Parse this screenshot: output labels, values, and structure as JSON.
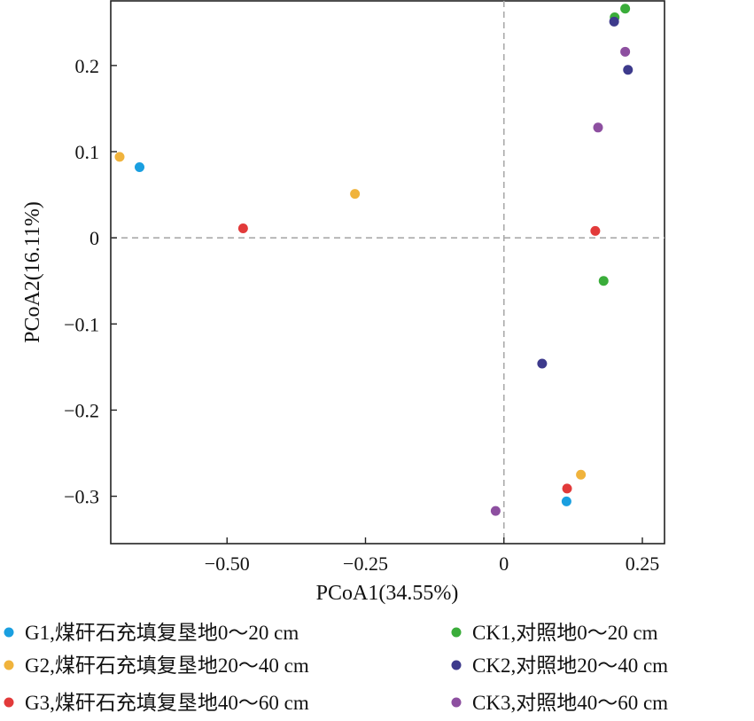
{
  "chart_data": {
    "type": "scatter",
    "xlabel": "PCoA1(34.55%)",
    "ylabel": "PCoA2(16.11%)",
    "xlim": [
      -0.71,
      0.29
    ],
    "ylim": [
      -0.355,
      0.275
    ],
    "xticks": [
      -0.5,
      -0.25,
      0,
      0.25
    ],
    "xtick_labels": [
      "−0.50",
      "−0.25",
      "0",
      "0.25"
    ],
    "yticks": [
      -0.3,
      -0.2,
      -0.1,
      0,
      0.1,
      0.2
    ],
    "ytick_labels": [
      "−0.3",
      "−0.2",
      "−0.1",
      "0",
      "0.1",
      "0.2"
    ],
    "reference_lines": {
      "x": 0,
      "y": 0,
      "style": "dashed",
      "color": "#aaaaaa"
    },
    "legend_position": "bottom",
    "series": [
      {
        "name": "G1,煤矸石充填复垦地0～20 cm",
        "color": "#1a9fe0",
        "points": [
          [
            -0.658,
            0.082
          ],
          [
            0.113,
            -0.306
          ]
        ]
      },
      {
        "name": "G2,煤矸石充填复垦地20～40 cm",
        "color": "#f0b33c",
        "points": [
          [
            -0.694,
            0.094
          ],
          [
            -0.269,
            0.051
          ],
          [
            0.139,
            -0.275
          ]
        ]
      },
      {
        "name": "G3,煤矸石充填复垦地40～60 cm",
        "color": "#e23a3a",
        "points": [
          [
            -0.471,
            0.011
          ],
          [
            0.165,
            0.008
          ],
          [
            0.114,
            -0.291
          ]
        ]
      },
      {
        "name": "CK1,对照地0～20 cm",
        "color": "#3aad3a",
        "points": [
          [
            0.2,
            0.256
          ],
          [
            0.219,
            0.266
          ],
          [
            0.18,
            -0.05
          ]
        ]
      },
      {
        "name": "CK2,对照地20～40 cm",
        "color": "#3d3a8c",
        "points": [
          [
            0.199,
            0.251
          ],
          [
            0.224,
            0.195
          ],
          [
            0.069,
            -0.146
          ]
        ]
      },
      {
        "name": "CK3,对照地40～60 cm",
        "color": "#8d4fa0",
        "points": [
          [
            0.219,
            0.216
          ],
          [
            0.17,
            0.128
          ],
          [
            -0.015,
            -0.317
          ]
        ]
      }
    ]
  }
}
